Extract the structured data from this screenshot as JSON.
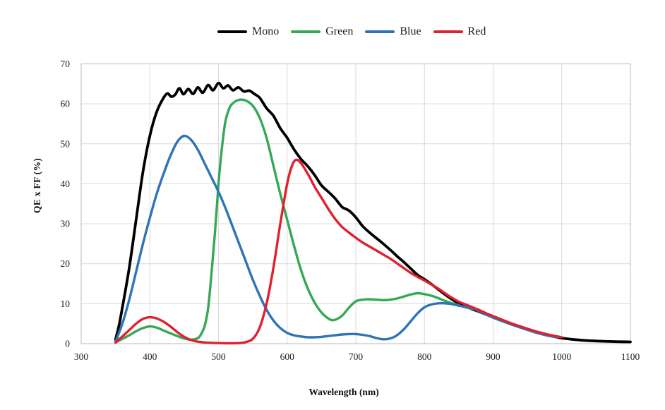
{
  "chart_data": {
    "type": "line",
    "title": "",
    "xlabel": "Wavelength (nm)",
    "ylabel": "QE x FF (%)",
    "xlim": [
      300,
      1100
    ],
    "ylim": [
      0,
      70
    ],
    "x_ticks": [
      300,
      400,
      500,
      600,
      700,
      800,
      900,
      1000,
      1100
    ],
    "y_ticks": [
      0,
      10,
      20,
      30,
      40,
      50,
      60,
      70
    ],
    "grid": true,
    "legend_position": "top-center",
    "grid_color": "#d9d9d9",
    "border_color": "#c4c4c4",
    "series": [
      {
        "name": "Mono",
        "color": "#000000",
        "points": [
          [
            350,
            1
          ],
          [
            355,
            4.5
          ],
          [
            360,
            9
          ],
          [
            370,
            19
          ],
          [
            380,
            31
          ],
          [
            390,
            43
          ],
          [
            400,
            52
          ],
          [
            410,
            58
          ],
          [
            420,
            61.5
          ],
          [
            426,
            62.6
          ],
          [
            431,
            61.8
          ],
          [
            437,
            62.3
          ],
          [
            443,
            63.9
          ],
          [
            449,
            62.4
          ],
          [
            456,
            63.7
          ],
          [
            463,
            62.5
          ],
          [
            470,
            64.1
          ],
          [
            477,
            62.8
          ],
          [
            485,
            64.7
          ],
          [
            492,
            63.4
          ],
          [
            500,
            65.2
          ],
          [
            507,
            63.9
          ],
          [
            514,
            64.6
          ],
          [
            521,
            63.4
          ],
          [
            529,
            64.1
          ],
          [
            537,
            63.1
          ],
          [
            545,
            63.3
          ],
          [
            552,
            62.5
          ],
          [
            560,
            61.5
          ],
          [
            570,
            58.9
          ],
          [
            580,
            57
          ],
          [
            590,
            53.9
          ],
          [
            600,
            51.5
          ],
          [
            610,
            48.6
          ],
          [
            620,
            46.2
          ],
          [
            630,
            44.4
          ],
          [
            640,
            42.2
          ],
          [
            650,
            39.6
          ],
          [
            660,
            38
          ],
          [
            670,
            36.3
          ],
          [
            680,
            34.2
          ],
          [
            690,
            33.3
          ],
          [
            700,
            31.6
          ],
          [
            710,
            29.4
          ],
          [
            720,
            27.8
          ],
          [
            730,
            26.4
          ],
          [
            740,
            25
          ],
          [
            750,
            23.5
          ],
          [
            760,
            21.9
          ],
          [
            770,
            20.4
          ],
          [
            780,
            18.8
          ],
          [
            790,
            17.2
          ],
          [
            800,
            16.1
          ],
          [
            810,
            14.9
          ],
          [
            820,
            13.6
          ],
          [
            830,
            12.3
          ],
          [
            840,
            11.1
          ],
          [
            850,
            10.1
          ],
          [
            860,
            9.3
          ],
          [
            870,
            8.6
          ],
          [
            880,
            8
          ],
          [
            890,
            7.3
          ],
          [
            900,
            6.6
          ],
          [
            920,
            5.3
          ],
          [
            940,
            4.1
          ],
          [
            960,
            3
          ],
          [
            980,
            2.1
          ],
          [
            1000,
            1.4
          ],
          [
            1020,
            1
          ],
          [
            1040,
            0.75
          ],
          [
            1060,
            0.6
          ],
          [
            1080,
            0.5
          ],
          [
            1100,
            0.45
          ]
        ]
      },
      {
        "name": "Green",
        "color": "#35a855",
        "points": [
          [
            350,
            0.3
          ],
          [
            360,
            1.2
          ],
          [
            370,
            2.1
          ],
          [
            380,
            3.1
          ],
          [
            390,
            3.9
          ],
          [
            400,
            4.3
          ],
          [
            410,
            4
          ],
          [
            420,
            3.3
          ],
          [
            430,
            2.6
          ],
          [
            440,
            1.9
          ],
          [
            450,
            1.3
          ],
          [
            460,
            1
          ],
          [
            470,
            1.4
          ],
          [
            475,
            2.5
          ],
          [
            480,
            4.5
          ],
          [
            485,
            9
          ],
          [
            490,
            18
          ],
          [
            495,
            28
          ],
          [
            500,
            40
          ],
          [
            505,
            49
          ],
          [
            510,
            55.5
          ],
          [
            515,
            58.5
          ],
          [
            520,
            60
          ],
          [
            530,
            61
          ],
          [
            540,
            60.8
          ],
          [
            550,
            59.5
          ],
          [
            560,
            56.5
          ],
          [
            570,
            51.5
          ],
          [
            580,
            44.5
          ],
          [
            590,
            37.5
          ],
          [
            600,
            31
          ],
          [
            610,
            24.5
          ],
          [
            620,
            18.5
          ],
          [
            630,
            13.8
          ],
          [
            640,
            10.3
          ],
          [
            650,
            7.8
          ],
          [
            660,
            6.3
          ],
          [
            668,
            5.9
          ],
          [
            680,
            7
          ],
          [
            690,
            9
          ],
          [
            700,
            10.6
          ],
          [
            710,
            11
          ],
          [
            720,
            11.1
          ],
          [
            730,
            11
          ],
          [
            740,
            10.9
          ],
          [
            750,
            11
          ],
          [
            760,
            11.3
          ],
          [
            770,
            11.8
          ],
          [
            780,
            12.3
          ],
          [
            790,
            12.6
          ],
          [
            800,
            12.4
          ],
          [
            810,
            12
          ],
          [
            820,
            11.4
          ],
          [
            830,
            10.7
          ],
          [
            840,
            10.1
          ],
          [
            850,
            9.6
          ],
          [
            860,
            9.1
          ],
          [
            870,
            8.7
          ]
        ]
      },
      {
        "name": "Blue",
        "color": "#2e74b5",
        "points": [
          [
            350,
            0.5
          ],
          [
            360,
            5
          ],
          [
            370,
            11
          ],
          [
            380,
            18
          ],
          [
            390,
            25
          ],
          [
            400,
            31.5
          ],
          [
            410,
            37.5
          ],
          [
            420,
            42.5
          ],
          [
            430,
            47
          ],
          [
            440,
            50.5
          ],
          [
            450,
            52
          ],
          [
            460,
            51
          ],
          [
            470,
            48.5
          ],
          [
            480,
            45
          ],
          [
            490,
            41.5
          ],
          [
            500,
            38
          ],
          [
            510,
            34
          ],
          [
            520,
            29.5
          ],
          [
            530,
            25
          ],
          [
            540,
            20.5
          ],
          [
            550,
            16
          ],
          [
            560,
            12
          ],
          [
            570,
            8.5
          ],
          [
            580,
            5.8
          ],
          [
            590,
            3.9
          ],
          [
            600,
            2.7
          ],
          [
            610,
            2.1
          ],
          [
            620,
            1.8
          ],
          [
            630,
            1.6
          ],
          [
            640,
            1.6
          ],
          [
            650,
            1.7
          ],
          [
            660,
            1.9
          ],
          [
            670,
            2.1
          ],
          [
            680,
            2.3
          ],
          [
            690,
            2.4
          ],
          [
            700,
            2.4
          ],
          [
            710,
            2.2
          ],
          [
            720,
            1.9
          ],
          [
            730,
            1.4
          ],
          [
            740,
            1.1
          ],
          [
            750,
            1.3
          ],
          [
            760,
            2.1
          ],
          [
            770,
            3.6
          ],
          [
            780,
            5.6
          ],
          [
            790,
            7.6
          ],
          [
            800,
            9.1
          ],
          [
            810,
            9.8
          ],
          [
            820,
            10.1
          ],
          [
            830,
            10.1
          ],
          [
            840,
            9.9
          ],
          [
            850,
            9.5
          ],
          [
            860,
            9.2
          ],
          [
            870,
            8.8
          ],
          [
            880,
            8.1
          ],
          [
            900,
            6.5
          ],
          [
            920,
            5.2
          ],
          [
            940,
            4
          ],
          [
            960,
            2.9
          ],
          [
            980,
            2
          ],
          [
            995,
            1.6
          ]
        ]
      },
      {
        "name": "Red",
        "color": "#e0202e",
        "points": [
          [
            350,
            0.3
          ],
          [
            360,
            1.8
          ],
          [
            370,
            3.4
          ],
          [
            380,
            5
          ],
          [
            390,
            6.2
          ],
          [
            400,
            6.6
          ],
          [
            410,
            6.3
          ],
          [
            420,
            5.5
          ],
          [
            430,
            4.3
          ],
          [
            440,
            2.9
          ],
          [
            450,
            1.7
          ],
          [
            460,
            0.9
          ],
          [
            470,
            0.5
          ],
          [
            480,
            0.3
          ],
          [
            490,
            0.2
          ],
          [
            500,
            0.15
          ],
          [
            510,
            0.1
          ],
          [
            520,
            0.1
          ],
          [
            530,
            0.15
          ],
          [
            540,
            0.4
          ],
          [
            550,
            1.2
          ],
          [
            560,
            4
          ],
          [
            570,
            10
          ],
          [
            580,
            19
          ],
          [
            590,
            30
          ],
          [
            600,
            40
          ],
          [
            607,
            44.5
          ],
          [
            613,
            46
          ],
          [
            620,
            45.2
          ],
          [
            630,
            42.5
          ],
          [
            640,
            39.3
          ],
          [
            650,
            36.5
          ],
          [
            660,
            33.7
          ],
          [
            670,
            31.2
          ],
          [
            680,
            29.2
          ],
          [
            690,
            27.8
          ],
          [
            700,
            26.5
          ],
          [
            710,
            25.3
          ],
          [
            720,
            24.3
          ],
          [
            730,
            23.3
          ],
          [
            740,
            22.3
          ],
          [
            750,
            21.3
          ],
          [
            760,
            20.1
          ],
          [
            770,
            18.9
          ],
          [
            780,
            17.7
          ],
          [
            790,
            16.7
          ],
          [
            800,
            15.8
          ],
          [
            810,
            14.8
          ],
          [
            820,
            13.8
          ],
          [
            830,
            12.6
          ],
          [
            840,
            11.5
          ],
          [
            850,
            10.5
          ],
          [
            860,
            9.8
          ],
          [
            870,
            9.1
          ],
          [
            880,
            8.4
          ],
          [
            890,
            7.6
          ],
          [
            900,
            6.9
          ],
          [
            920,
            5.5
          ],
          [
            940,
            4.3
          ],
          [
            960,
            3.2
          ],
          [
            980,
            2.3
          ],
          [
            1000,
            1.6
          ]
        ]
      }
    ]
  }
}
